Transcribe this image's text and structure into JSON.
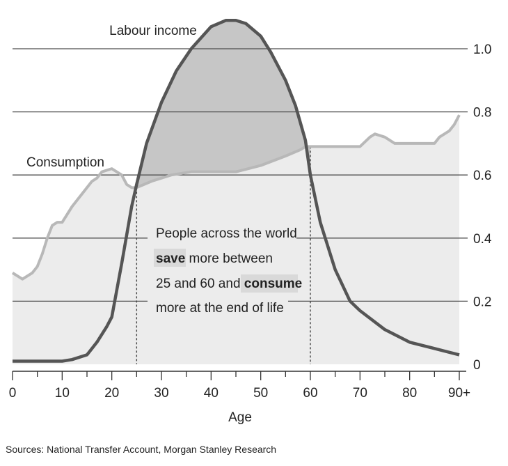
{
  "chart_data": {
    "type": "area",
    "xlabel": "Age",
    "ylabel": "",
    "xlim": [
      0,
      90
    ],
    "ylim": [
      0,
      1.1
    ],
    "x_ticks": [
      0,
      10,
      20,
      30,
      40,
      50,
      60,
      70,
      80,
      90
    ],
    "x_tick_labels": [
      "0",
      "10",
      "20",
      "30",
      "40",
      "50",
      "60",
      "70",
      "80",
      "90+"
    ],
    "y_ticks": [
      0,
      0.2,
      0.4,
      0.6,
      0.8,
      1.0
    ],
    "y_tick_labels": [
      "0",
      "0.2",
      "0.4",
      "0.6",
      "0.8",
      "1.0"
    ],
    "grid": true,
    "series": [
      {
        "name": "Labour income",
        "color": "#555555",
        "x": [
          0,
          5,
          10,
          12,
          15,
          17,
          19,
          20,
          22,
          24,
          25,
          27,
          30,
          33,
          36,
          40,
          43,
          45,
          47,
          50,
          52,
          55,
          57,
          59,
          60,
          62,
          65,
          68,
          70,
          75,
          80,
          85,
          90
        ],
        "y": [
          0.01,
          0.01,
          0.01,
          0.015,
          0.03,
          0.07,
          0.12,
          0.15,
          0.32,
          0.5,
          0.57,
          0.7,
          0.83,
          0.93,
          1.0,
          1.07,
          1.09,
          1.09,
          1.08,
          1.04,
          0.99,
          0.9,
          0.82,
          0.71,
          0.6,
          0.45,
          0.3,
          0.2,
          0.17,
          0.11,
          0.07,
          0.05,
          0.03
        ]
      },
      {
        "name": "Consumption",
        "color": "#b8b8b8",
        "x": [
          0,
          1,
          2,
          3,
          4,
          5,
          6,
          7,
          8,
          9,
          10,
          12,
          14,
          16,
          17,
          18,
          20,
          22,
          23,
          24,
          25,
          28,
          32,
          36,
          40,
          45,
          50,
          55,
          58,
          59,
          60,
          65,
          70,
          72,
          73,
          75,
          77,
          80,
          85,
          86,
          88,
          89,
          90
        ],
        "y": [
          0.29,
          0.28,
          0.27,
          0.28,
          0.29,
          0.31,
          0.35,
          0.4,
          0.44,
          0.45,
          0.45,
          0.5,
          0.54,
          0.58,
          0.59,
          0.61,
          0.62,
          0.6,
          0.57,
          0.56,
          0.56,
          0.58,
          0.6,
          0.61,
          0.61,
          0.61,
          0.63,
          0.66,
          0.68,
          0.69,
          0.69,
          0.69,
          0.69,
          0.72,
          0.73,
          0.72,
          0.7,
          0.7,
          0.7,
          0.72,
          0.74,
          0.76,
          0.79
        ]
      }
    ],
    "reference_lines_x": [
      25,
      60
    ],
    "annotations": {
      "labour_label": "Labour income",
      "consumption_label": "Consumption",
      "line1": "People across the world",
      "line2_bold": "save",
      "line2_rest": " more between",
      "line3_start": "25 and 60 and ",
      "line3_bold": "consume",
      "line4": "more at the end of life"
    },
    "source": "Sources: National Transfer Account, Morgan Stanley Research",
    "colors": {
      "surplus_fill": "#c6c6c6",
      "deficit_fill": "#ececec",
      "highlight": "#d9d9d9",
      "gridline": "#4d4d4d"
    }
  }
}
